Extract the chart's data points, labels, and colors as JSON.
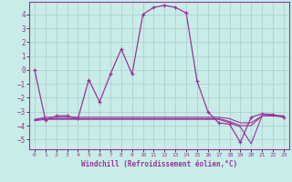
{
  "title": "Windchill (Refroidissement éolien,°C)",
  "bg_color": "#c8ece8",
  "line_color": "#993399",
  "grid_color": "#aacccc",
  "x_ticks": [
    0,
    1,
    2,
    3,
    4,
    5,
    6,
    7,
    8,
    9,
    10,
    11,
    12,
    13,
    14,
    15,
    16,
    17,
    18,
    19,
    20,
    21,
    22,
    23
  ],
  "y_ticks": [
    -5,
    -4,
    -3,
    -2,
    -1,
    0,
    1,
    2,
    3,
    4
  ],
  "ylim": [
    -5.7,
    4.9
  ],
  "xlim": [
    -0.5,
    23.5
  ],
  "curve1": [
    0.0,
    -3.6,
    -3.3,
    -3.3,
    -3.5,
    -0.7,
    -2.3,
    -0.3,
    1.5,
    -0.3,
    4.0,
    4.5,
    4.65,
    4.5,
    4.1,
    -0.8,
    -3.0,
    -3.8,
    -3.9,
    -5.2,
    -3.4,
    -3.15,
    -3.2,
    -3.4
  ],
  "curve2": [
    -3.55,
    -3.4,
    -3.4,
    -3.4,
    -3.4,
    -3.4,
    -3.4,
    -3.4,
    -3.4,
    -3.4,
    -3.4,
    -3.4,
    -3.4,
    -3.4,
    -3.4,
    -3.4,
    -3.4,
    -3.4,
    -3.5,
    -3.8,
    -3.8,
    -3.3,
    -3.25,
    -3.3
  ],
  "curve3": [
    -3.6,
    -3.5,
    -3.5,
    -3.5,
    -3.5,
    -3.5,
    -3.5,
    -3.5,
    -3.5,
    -3.5,
    -3.5,
    -3.5,
    -3.5,
    -3.5,
    -3.5,
    -3.5,
    -3.5,
    -3.5,
    -3.7,
    -4.0,
    -4.0,
    -3.3,
    -3.3,
    -3.35
  ],
  "curve4": [
    -3.65,
    -3.55,
    -3.55,
    -3.55,
    -3.55,
    -3.55,
    -3.55,
    -3.55,
    -3.55,
    -3.55,
    -3.55,
    -3.55,
    -3.55,
    -3.55,
    -3.55,
    -3.55,
    -3.55,
    -3.55,
    -3.8,
    -4.1,
    -5.3,
    -3.3,
    -3.3,
    -3.35
  ]
}
